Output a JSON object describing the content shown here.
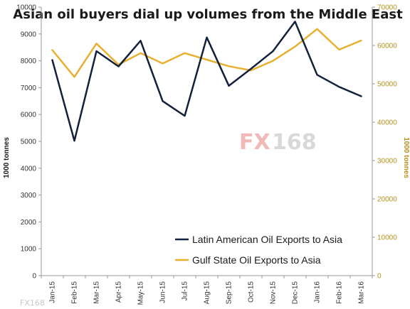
{
  "chart_data": {
    "type": "line",
    "title": "Asian oil buyers dial up volumes from the Middle East",
    "categories": [
      "Jan-15",
      "Feb-15",
      "Mar-15",
      "Apr-15",
      "May-15",
      "Jun-15",
      "Jul-15",
      "Aug-15",
      "Sep-15",
      "Oct-15",
      "Nov-15",
      "Dec-15",
      "Jan-16",
      "Feb-16",
      "Mar-16"
    ],
    "ylabel_left": "1000 tonnes",
    "ylabel_right": "1000 tonnes",
    "ylim_left": [
      0,
      10000
    ],
    "ylim_right": [
      0,
      70000
    ],
    "yticks_left": [
      0,
      1000,
      2000,
      3000,
      4000,
      5000,
      6000,
      7000,
      8000,
      9000,
      10000
    ],
    "yticks_right": [
      0,
      10000,
      20000,
      30000,
      40000,
      50000,
      60000,
      70000
    ],
    "grid": false,
    "legend_position": "bottom-right",
    "series": [
      {
        "name": "Latin American Oil Exports to Asia",
        "axis": "left",
        "color": "#14213d",
        "values": [
          8030,
          5020,
          8360,
          7790,
          8750,
          6500,
          5950,
          8870,
          7070,
          7700,
          8360,
          9460,
          7480,
          7030,
          6680
        ]
      },
      {
        "name": "Gulf State Oil Exports to Asia",
        "axis": "right",
        "color": "#e8b030",
        "values": [
          58800,
          51800,
          60500,
          55000,
          58000,
          55300,
          58000,
          56300,
          54600,
          53500,
          56000,
          59700,
          64300,
          58900,
          61300
        ]
      }
    ]
  },
  "watermark": {
    "brand_a": "FX",
    "brand_b": "168",
    "footer": "FX168"
  }
}
